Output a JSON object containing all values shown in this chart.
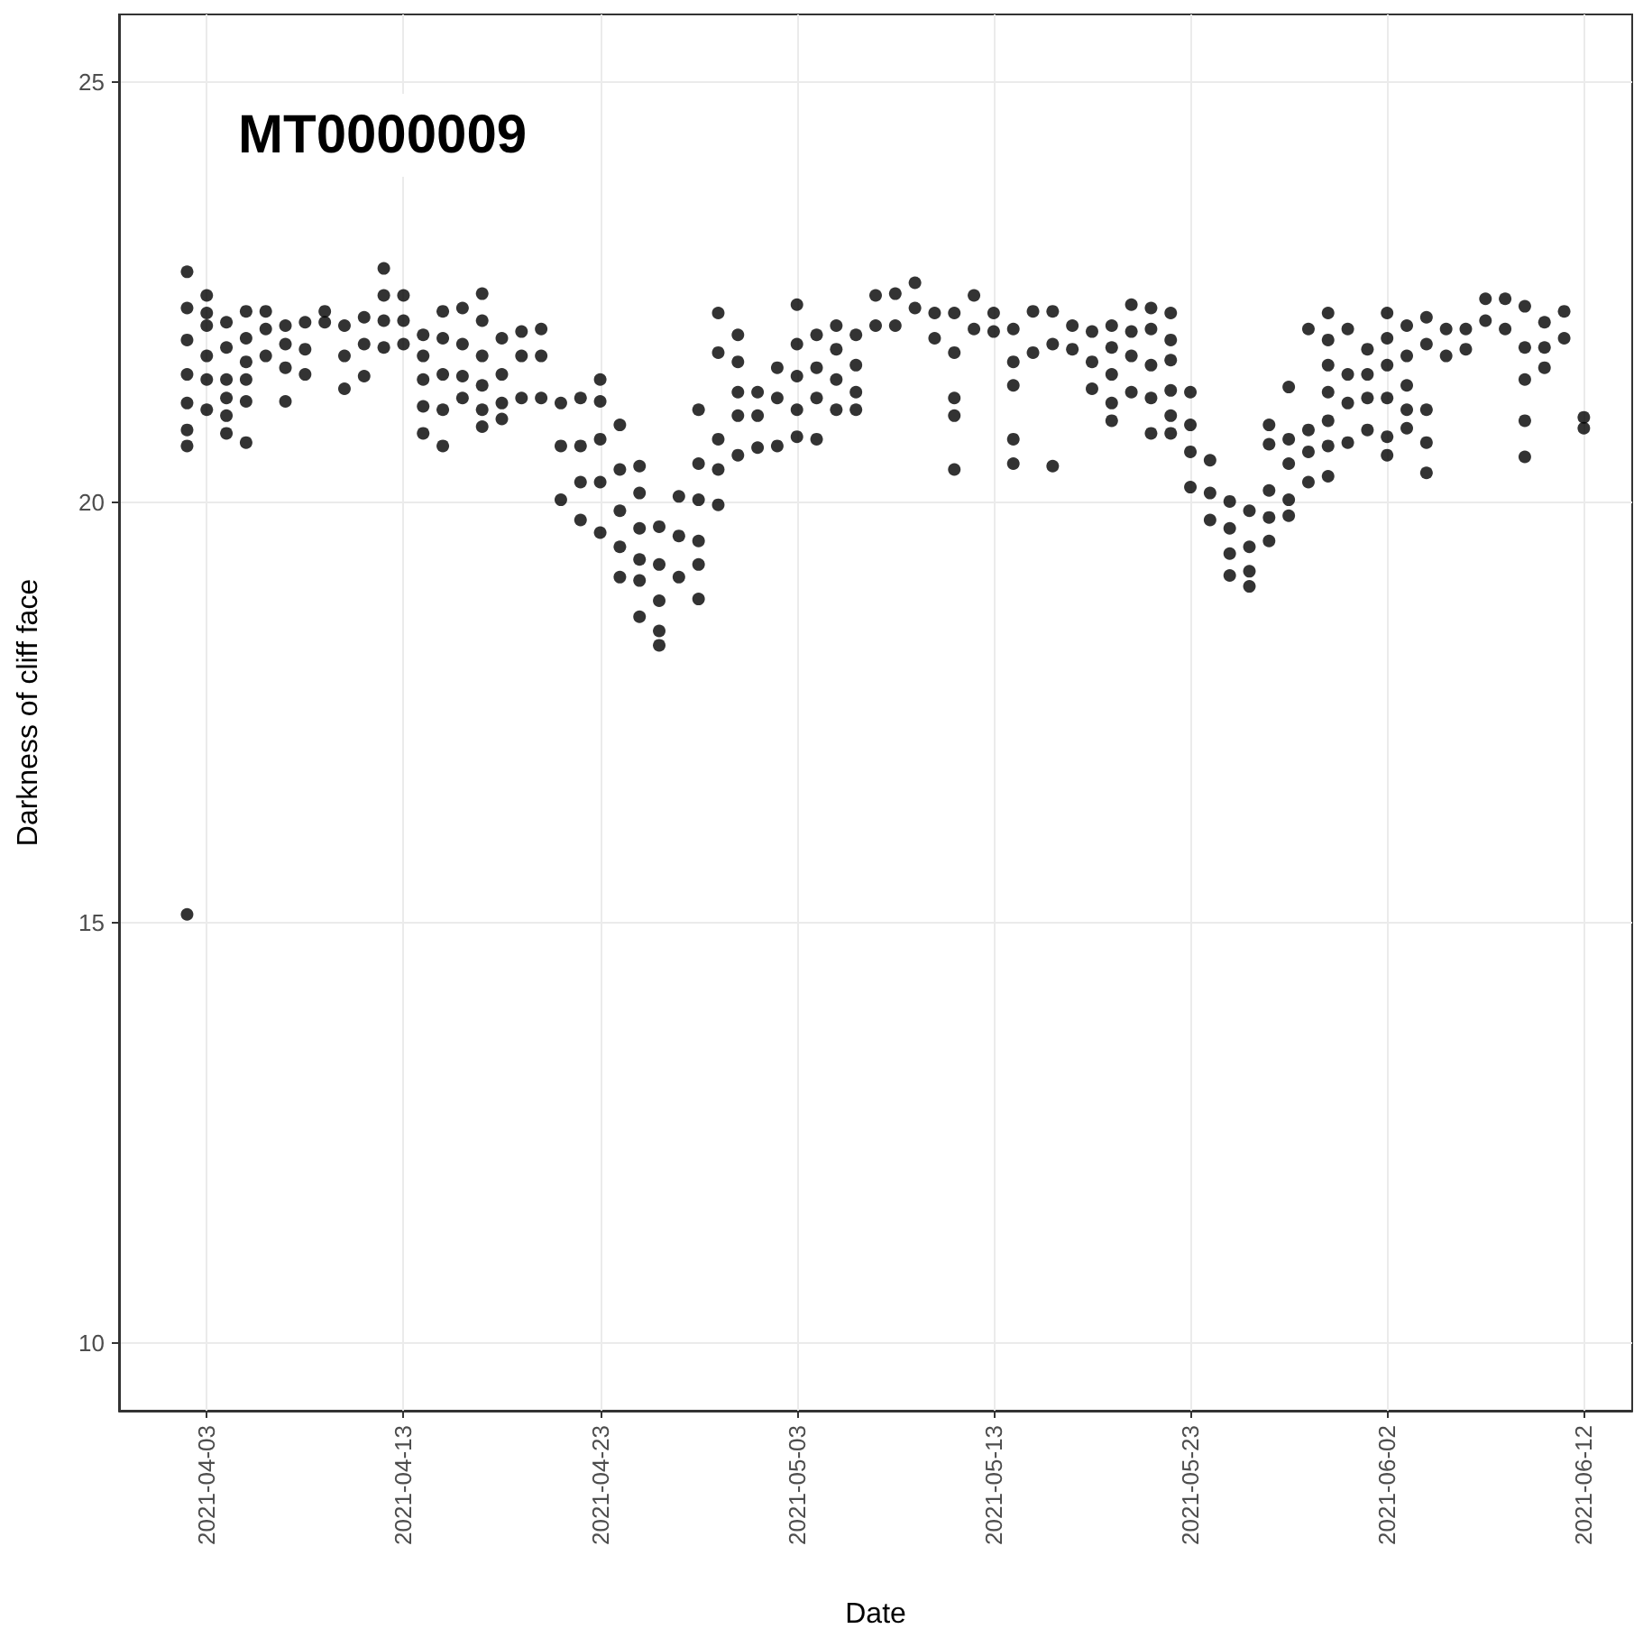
{
  "chart_data": {
    "type": "scatter",
    "title": "MT0000009",
    "xlabel": "Date",
    "ylabel": "Darkness of cliff face",
    "color": "#000000",
    "marker": "circle",
    "grid": true,
    "xlim": [
      "2021-03-29T13:00",
      "2021-06-14T11:00"
    ],
    "ylim": [
      9.2,
      25.8
    ],
    "xticks": [
      "2021-04-03",
      "2021-04-13",
      "2021-04-23",
      "2021-05-03",
      "2021-05-13",
      "2021-05-23",
      "2021-06-02",
      "2021-06-12"
    ],
    "yticks": [
      10,
      15,
      20,
      25
    ],
    "x": [
      "2021-04-02",
      "2021-04-02",
      "2021-04-02",
      "2021-04-02",
      "2021-04-02",
      "2021-04-02",
      "2021-04-02",
      "2021-04-02",
      "2021-04-03",
      "2021-04-03",
      "2021-04-03",
      "2021-04-03",
      "2021-04-03",
      "2021-04-03",
      "2021-04-04",
      "2021-04-04",
      "2021-04-04",
      "2021-04-04",
      "2021-04-04",
      "2021-04-04",
      "2021-04-05",
      "2021-04-05",
      "2021-04-05",
      "2021-04-05",
      "2021-04-05",
      "2021-04-05",
      "2021-04-06",
      "2021-04-06",
      "2021-04-06",
      "2021-04-07",
      "2021-04-07",
      "2021-04-07",
      "2021-04-07",
      "2021-04-08",
      "2021-04-08",
      "2021-04-08",
      "2021-04-09",
      "2021-04-09",
      "2021-04-10",
      "2021-04-10",
      "2021-04-10",
      "2021-04-11",
      "2021-04-11",
      "2021-04-11",
      "2021-04-12",
      "2021-04-12",
      "2021-04-12",
      "2021-04-12",
      "2021-04-13",
      "2021-04-13",
      "2021-04-13",
      "2021-04-14",
      "2021-04-14",
      "2021-04-14",
      "2021-04-14",
      "2021-04-14",
      "2021-04-15",
      "2021-04-15",
      "2021-04-15",
      "2021-04-15",
      "2021-04-15",
      "2021-04-16",
      "2021-04-16",
      "2021-04-16",
      "2021-04-16",
      "2021-04-17",
      "2021-04-17",
      "2021-04-17",
      "2021-04-17",
      "2021-04-17",
      "2021-04-17",
      "2021-04-18",
      "2021-04-18",
      "2021-04-18",
      "2021-04-18",
      "2021-04-19",
      "2021-04-19",
      "2021-04-19",
      "2021-04-20",
      "2021-04-20",
      "2021-04-20",
      "2021-04-21",
      "2021-04-21",
      "2021-04-21",
      "2021-04-22",
      "2021-04-22",
      "2021-04-22",
      "2021-04-22",
      "2021-04-23",
      "2021-04-23",
      "2021-04-23",
      "2021-04-23",
      "2021-04-23",
      "2021-04-24",
      "2021-04-24",
      "2021-04-24",
      "2021-04-24",
      "2021-04-24",
      "2021-04-25",
      "2021-04-25",
      "2021-04-25",
      "2021-04-25",
      "2021-04-25",
      "2021-04-25",
      "2021-04-26",
      "2021-04-26",
      "2021-04-26",
      "2021-04-26",
      "2021-04-26",
      "2021-04-27",
      "2021-04-27",
      "2021-04-27",
      "2021-04-28",
      "2021-04-28",
      "2021-04-28",
      "2021-04-28",
      "2021-04-28",
      "2021-04-28",
      "2021-04-29",
      "2021-04-29",
      "2021-04-29",
      "2021-04-29",
      "2021-04-29",
      "2021-04-30",
      "2021-04-30",
      "2021-04-30",
      "2021-04-30",
      "2021-04-30",
      "2021-05-01",
      "2021-05-01",
      "2021-05-01",
      "2021-05-02",
      "2021-05-02",
      "2021-05-02",
      "2021-05-03",
      "2021-05-03",
      "2021-05-03",
      "2021-05-03",
      "2021-05-03",
      "2021-05-04",
      "2021-05-04",
      "2021-05-04",
      "2021-05-04",
      "2021-05-05",
      "2021-05-05",
      "2021-05-05",
      "2021-05-05",
      "2021-05-06",
      "2021-05-06",
      "2021-05-06",
      "2021-05-06",
      "2021-05-07",
      "2021-05-07",
      "2021-05-08",
      "2021-05-08",
      "2021-05-09",
      "2021-05-09",
      "2021-05-10",
      "2021-05-10",
      "2021-05-11",
      "2021-05-11",
      "2021-05-11",
      "2021-05-11",
      "2021-05-11",
      "2021-05-12",
      "2021-05-12",
      "2021-05-13",
      "2021-05-13",
      "2021-05-14",
      "2021-05-14",
      "2021-05-14",
      "2021-05-14",
      "2021-05-14",
      "2021-05-15",
      "2021-05-15",
      "2021-05-16",
      "2021-05-16",
      "2021-05-16",
      "2021-05-17",
      "2021-05-17",
      "2021-05-18",
      "2021-05-18",
      "2021-05-18",
      "2021-05-19",
      "2021-05-19",
      "2021-05-19",
      "2021-05-19",
      "2021-05-19",
      "2021-05-20",
      "2021-05-20",
      "2021-05-20",
      "2021-05-20",
      "2021-05-21",
      "2021-05-21",
      "2021-05-21",
      "2021-05-21",
      "2021-05-21",
      "2021-05-22",
      "2021-05-22",
      "2021-05-22",
      "2021-05-22",
      "2021-05-22",
      "2021-05-22",
      "2021-05-23",
      "2021-05-23",
      "2021-05-23",
      "2021-05-23",
      "2021-05-24",
      "2021-05-24",
      "2021-05-24",
      "2021-05-25",
      "2021-05-25",
      "2021-05-25",
      "2021-05-25",
      "2021-05-26",
      "2021-05-26",
      "2021-05-26",
      "2021-05-26",
      "2021-05-27",
      "2021-05-27",
      "2021-05-27",
      "2021-05-27",
      "2021-05-27",
      "2021-05-28",
      "2021-05-28",
      "2021-05-28",
      "2021-05-28",
      "2021-05-28",
      "2021-05-29",
      "2021-05-29",
      "2021-05-29",
      "2021-05-29",
      "2021-05-30",
      "2021-05-30",
      "2021-05-30",
      "2021-05-30",
      "2021-05-30",
      "2021-05-30",
      "2021-05-30",
      "2021-05-31",
      "2021-05-31",
      "2021-05-31",
      "2021-05-31",
      "2021-06-01",
      "2021-06-01",
      "2021-06-01",
      "2021-06-01",
      "2021-06-02",
      "2021-06-02",
      "2021-06-02",
      "2021-06-02",
      "2021-06-02",
      "2021-06-02",
      "2021-06-03",
      "2021-06-03",
      "2021-06-03",
      "2021-06-03",
      "2021-06-03",
      "2021-06-04",
      "2021-06-04",
      "2021-06-04",
      "2021-06-04",
      "2021-06-04",
      "2021-06-05",
      "2021-06-05",
      "2021-06-06",
      "2021-06-06",
      "2021-06-07",
      "2021-06-07",
      "2021-06-08",
      "2021-06-08",
      "2021-06-09",
      "2021-06-09",
      "2021-06-09",
      "2021-06-09",
      "2021-06-09",
      "2021-06-10",
      "2021-06-10",
      "2021-06-10",
      "2021-06-11",
      "2021-06-11",
      "2021-06-12",
      "2021-06-12"
    ],
    "values": [
      22.74,
      22.31,
      21.93,
      21.52,
      21.18,
      20.86,
      20.67,
      15.1,
      22.46,
      22.25,
      22.1,
      21.74,
      21.46,
      21.1,
      22.14,
      21.84,
      21.46,
      21.24,
      21.03,
      20.82,
      22.27,
      21.95,
      21.67,
      21.46,
      21.2,
      20.71,
      22.27,
      22.06,
      21.74,
      22.1,
      21.88,
      21.6,
      21.2,
      22.14,
      21.82,
      21.52,
      22.27,
      22.14,
      22.1,
      21.74,
      21.35,
      22.2,
      21.88,
      21.5,
      22.78,
      22.46,
      22.16,
      21.84,
      22.46,
      22.16,
      21.88,
      21.99,
      21.74,
      21.46,
      21.14,
      20.82,
      22.27,
      21.95,
      21.52,
      21.1,
      20.67,
      22.31,
      21.88,
      21.5,
      21.24,
      22.48,
      22.16,
      21.74,
      21.39,
      21.1,
      20.9,
      21.95,
      21.52,
      21.18,
      20.99,
      22.03,
      21.74,
      21.24,
      22.06,
      21.74,
      21.24,
      21.18,
      20.67,
      20.03,
      21.24,
      20.67,
      20.24,
      19.79,
      21.46,
      21.2,
      20.75,
      20.24,
      19.64,
      20.92,
      20.39,
      19.9,
      19.47,
      19.11,
      20.43,
      20.11,
      19.69,
      19.32,
      19.07,
      18.64,
      19.71,
      19.26,
      18.83,
      18.47,
      18.3,
      20.07,
      19.6,
      19.11,
      21.1,
      20.46,
      20.03,
      19.54,
      19.26,
      18.85,
      22.25,
      21.78,
      20.75,
      20.39,
      19.97,
      21.99,
      21.67,
      21.31,
      21.03,
      20.56,
      21.31,
      21.03,
      20.65,
      21.6,
      21.24,
      20.67,
      22.35,
      21.88,
      21.5,
      21.1,
      20.78,
      21.99,
      21.6,
      21.24,
      20.75,
      22.1,
      21.82,
      21.46,
      21.1,
      21.99,
      21.63,
      21.31,
      21.1,
      22.46,
      22.1,
      22.48,
      22.1,
      22.61,
      22.31,
      22.25,
      21.95,
      22.25,
      21.78,
      21.24,
      21.03,
      20.39,
      22.46,
      22.06,
      22.25,
      22.03,
      22.06,
      21.67,
      21.39,
      20.75,
      20.46,
      22.27,
      21.78,
      22.27,
      21.88,
      20.43,
      22.1,
      21.82,
      22.03,
      21.67,
      21.35,
      22.1,
      21.84,
      21.52,
      21.18,
      20.97,
      22.35,
      22.03,
      21.74,
      21.31,
      22.31,
      22.06,
      21.63,
      21.24,
      20.82,
      22.25,
      21.93,
      21.69,
      21.33,
      21.03,
      20.82,
      21.31,
      20.92,
      20.6,
      20.18,
      20.5,
      20.11,
      19.79,
      20.01,
      19.69,
      19.39,
      19.13,
      19.9,
      19.47,
      19.18,
      19.0,
      20.92,
      20.69,
      20.14,
      19.82,
      19.54,
      21.37,
      20.75,
      20.46,
      20.03,
      19.84,
      22.06,
      20.86,
      20.6,
      20.24,
      22.25,
      21.93,
      21.63,
      21.31,
      20.97,
      20.67,
      20.31,
      22.06,
      21.52,
      21.18,
      20.71,
      21.82,
      21.52,
      21.24,
      20.86,
      22.25,
      21.95,
      21.63,
      21.24,
      20.78,
      20.56,
      22.1,
      21.74,
      21.39,
      21.1,
      20.88,
      22.2,
      21.88,
      21.1,
      20.71,
      20.35,
      22.06,
      21.74,
      22.06,
      21.82,
      22.42,
      22.16,
      22.42,
      22.06,
      22.33,
      21.84,
      21.46,
      20.97,
      20.54,
      22.14,
      21.84,
      21.6,
      22.27,
      21.95,
      21.01,
      20.88
    ]
  }
}
